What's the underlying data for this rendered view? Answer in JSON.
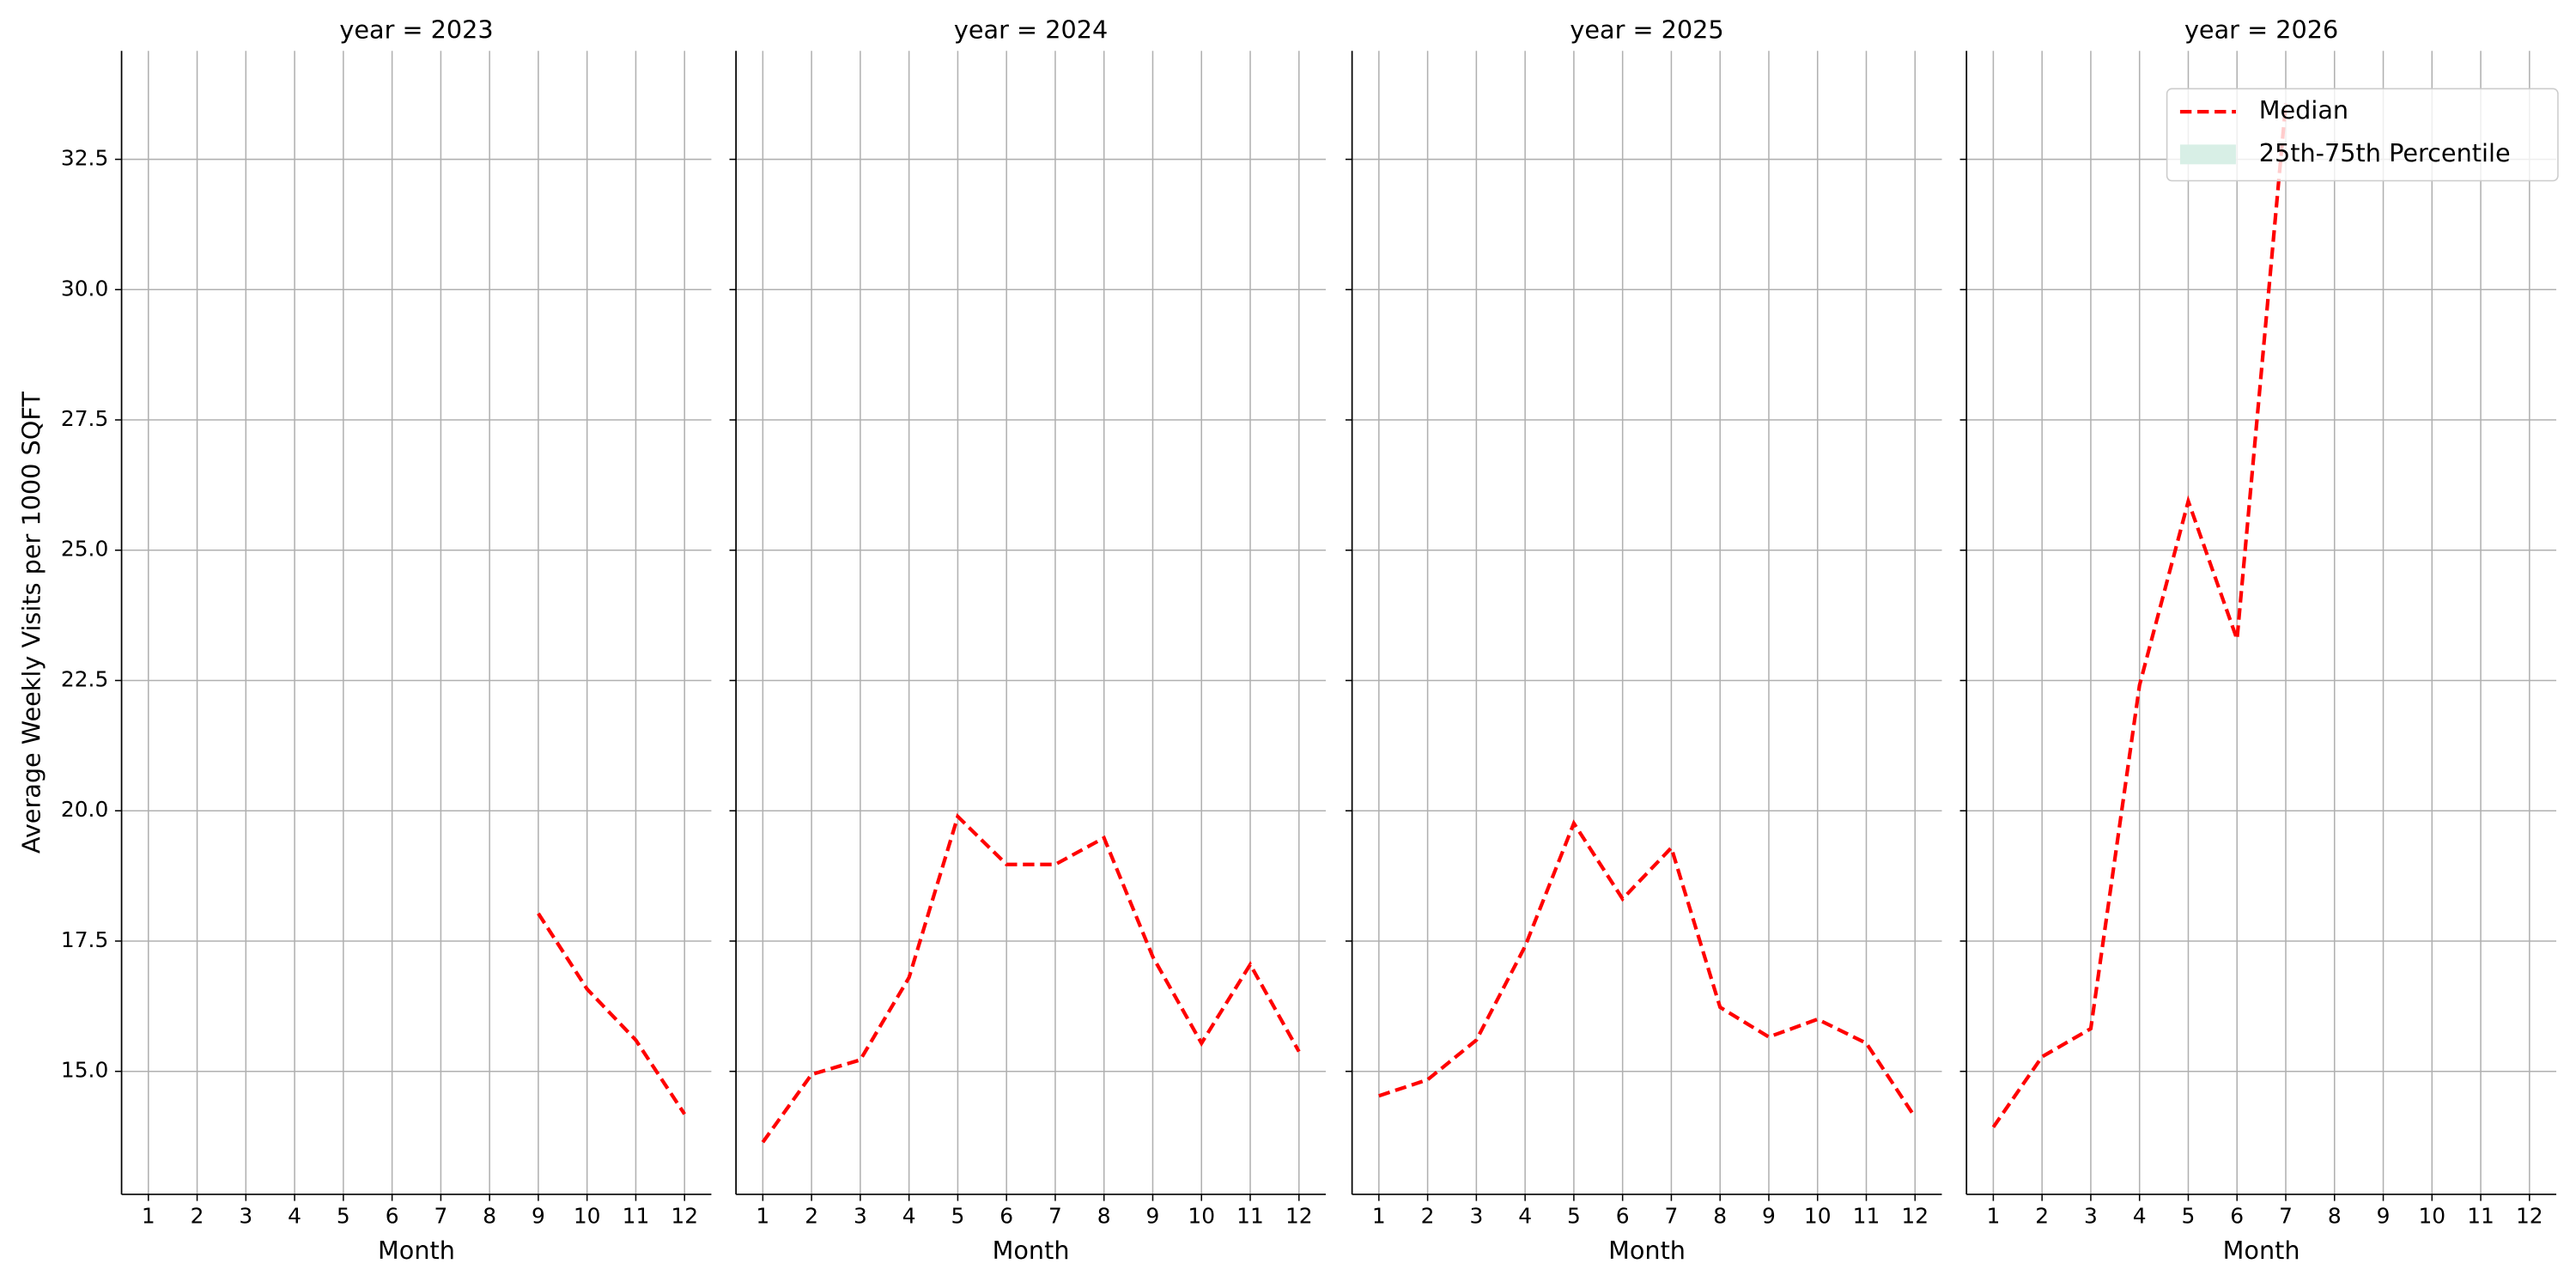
{
  "chart_data": [
    {
      "type": "line",
      "title": "year = 2023",
      "ylabel": "Average Weekly Visits per 1000 SQFT",
      "xlabel": "Month",
      "x": [
        1,
        2,
        3,
        4,
        5,
        6,
        7,
        8,
        9,
        10,
        11,
        12
      ],
      "xlim": [
        0.45,
        12.55
      ],
      "xticks": [
        1,
        2,
        3,
        4,
        5,
        6,
        7,
        8,
        9,
        10,
        11,
        12
      ],
      "ylim": [
        12.64,
        34.58
      ],
      "yticks": [
        {
          "value": 15,
          "label": "15.0"
        },
        17.5,
        {
          "value": 20,
          "label": "20.0"
        },
        22.5,
        {
          "value": 25,
          "label": "25.0"
        },
        27.5,
        {
          "value": 30,
          "label": "30.0"
        },
        32.5
      ],
      "grid": true,
      "series": [
        {
          "color": "#ff0000",
          "values": [
            null,
            null,
            null,
            null,
            null,
            null,
            null,
            null,
            18.03,
            16.58,
            15.6,
            14.18
          ]
        }
      ]
    },
    {
      "type": "line",
      "title": "year = 2024",
      "xlabel": "Month",
      "x": [
        1,
        2,
        3,
        4,
        5,
        6,
        7,
        8,
        9,
        10,
        11,
        12
      ],
      "xlim": [
        0.45,
        12.55
      ],
      "xticks": [
        1,
        2,
        3,
        4,
        5,
        6,
        7,
        8,
        9,
        10,
        11,
        12
      ],
      "grid": true,
      "series": [
        {
          "color": "#ff0000",
          "values": [
            13.64,
            14.94,
            15.22,
            16.8,
            19.89,
            18.97,
            18.97,
            19.48,
            17.2,
            15.54,
            17.05,
            15.38
          ]
        }
      ]
    },
    {
      "type": "line",
      "title": "year = 2025",
      "xlabel": "Month",
      "x": [
        1,
        2,
        3,
        4,
        5,
        6,
        7,
        8,
        9,
        10,
        11,
        12
      ],
      "xlim": [
        0.45,
        12.55
      ],
      "xticks": [
        1,
        2,
        3,
        4,
        5,
        6,
        7,
        8,
        9,
        10,
        11,
        12
      ],
      "grid": true,
      "series": [
        {
          "color": "#ff0000",
          "values": [
            14.53,
            14.84,
            15.6,
            17.4,
            19.76,
            18.31,
            19.29,
            16.23,
            15.66,
            16.0,
            15.54,
            14.12
          ]
        }
      ]
    },
    {
      "type": "line",
      "title": "year = 2026",
      "xlabel": "Month",
      "x": [
        1,
        2,
        3,
        4,
        5,
        6,
        7,
        8,
        9,
        10,
        11,
        12
      ],
      "xlim": [
        0.45,
        12.55
      ],
      "xticks": [
        1,
        2,
        3,
        4,
        5,
        6,
        7,
        8,
        9,
        10,
        11,
        12
      ],
      "grid": true,
      "legend": "upper right",
      "series": [
        {
          "name": "Median",
          "color": "#ff0000",
          "values": [
            13.93,
            15.28,
            15.82,
            22.41,
            25.94,
            23.29,
            33.57,
            null,
            null,
            null,
            null,
            null
          ]
        }
      ],
      "band": {
        "name": "25th-75th Percentile",
        "color": "#d8efe6"
      }
    }
  ]
}
